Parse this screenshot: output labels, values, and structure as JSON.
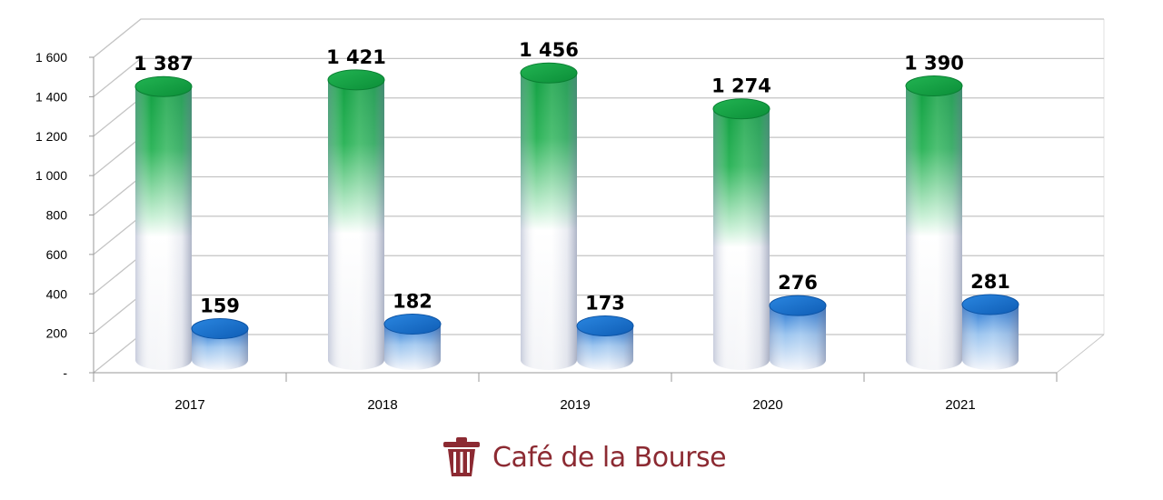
{
  "chart_data": {
    "type": "bar",
    "style": "3d-cylinder",
    "categories": [
      "2017",
      "2018",
      "2019",
      "2020",
      "2021"
    ],
    "series": [
      {
        "values": [
          1387,
          1421,
          1456,
          1274,
          1390
        ],
        "color": "#1aa34a"
      },
      {
        "values": [
          159,
          182,
          173,
          276,
          281
        ],
        "color": "#1766c4"
      }
    ],
    "y_ticks": [
      {
        "value": 0,
        "label": "-"
      },
      {
        "value": 200,
        "label": "200"
      },
      {
        "value": 400,
        "label": "400"
      },
      {
        "value": 600,
        "label": "600"
      },
      {
        "value": 800,
        "label": "800"
      },
      {
        "value": 1000,
        "label": "1 000"
      },
      {
        "value": 1200,
        "label": "1 200"
      },
      {
        "value": 1400,
        "label": "1 400"
      },
      {
        "value": 1600,
        "label": "1 600"
      }
    ],
    "ylim": [
      0,
      1600
    ],
    "data_labels": [
      [
        "1 387",
        "1 421",
        "1 456",
        "1 274",
        "1 390"
      ],
      [
        "159",
        "182",
        "173",
        "276",
        "281"
      ]
    ],
    "grid": true,
    "legend": "none",
    "xlabel": "",
    "ylabel": ""
  },
  "branding": {
    "text": "Café de la Bourse",
    "icon": "trash-bin-icon",
    "color": "#8c2a32"
  }
}
